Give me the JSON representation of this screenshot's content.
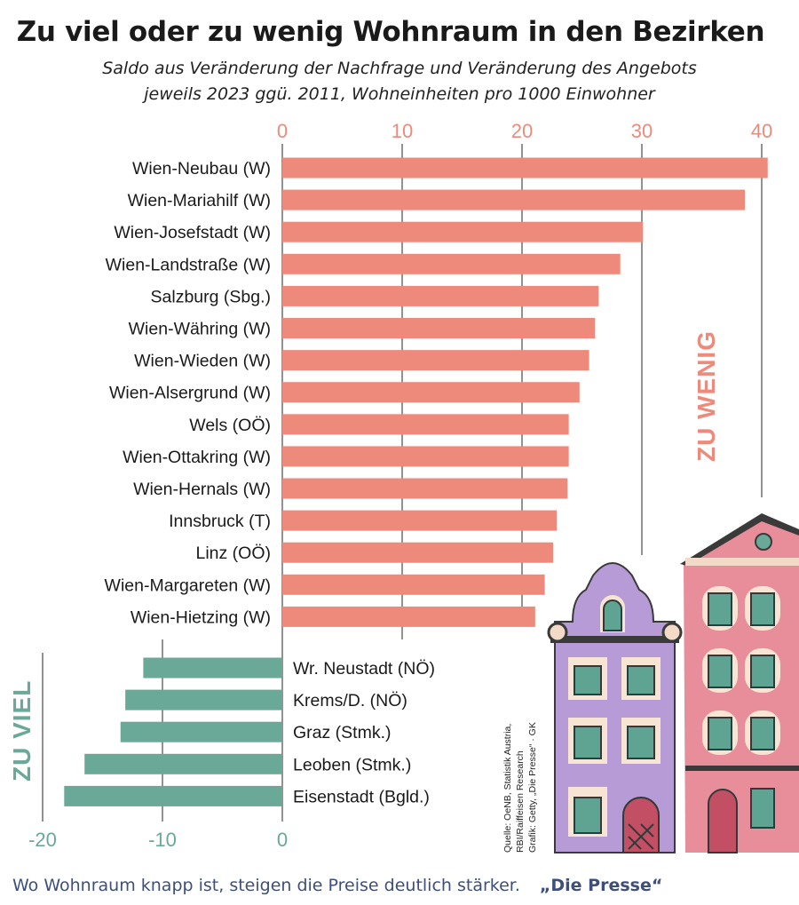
{
  "header": {
    "title": "Zu viel oder zu wenig Wohnraum in den Bezirken",
    "subtitle_line1": "Saldo aus Veränderung der Nachfrage und Veränderung des Angebots",
    "subtitle_line2": "jeweils 2023 ggü. 2011, Wohneinheiten pro 1000 Einwohner"
  },
  "annotations": {
    "too_little": "ZU WENIG",
    "too_much": "ZU VIEL",
    "source_line1": "Quelle: OeNB, Statistik Austria,",
    "source_line2": "RBI/Raiffeisen Research",
    "source_line3": "Grafik: Getty, „Die Presse“ · GK"
  },
  "caption": {
    "text": "Wo Wohnraum knapp ist, steigen die Preise deutlich stärker.",
    "brand": "„Die Presse“"
  },
  "colors": {
    "positive": "#ee8a7b",
    "negative": "#6aa897",
    "axis_top": "#ee8a7b",
    "axis_bottom": "#6aa897"
  },
  "chart_data": {
    "type": "bar",
    "orientation": "horizontal",
    "categories": [
      "Wien-Neubau (W)",
      "Wien-Mariahilf (W)",
      "Wien-Josefstadt (W)",
      "Wien-Landstraße (W)",
      "Salzburg (Sbg.)",
      "Wien-Währing (W)",
      "Wien-Wieden (W)",
      "Wien-Alsergrund (W)",
      "Wels (OÖ)",
      "Wien-Ottakring (W)",
      "Wien-Hernals (W)",
      "Innsbruck (T)",
      "Linz (OÖ)",
      "Wien-Margareten (W)",
      "Wien-Hietzing (W)",
      "Wr. Neustadt (NÖ)",
      "Krems/D. (NÖ)",
      "Graz (Stmk.)",
      "Leoben (Stmk.)",
      "Eisenstadt (Bgld.)"
    ],
    "values": [
      40.5,
      38.6,
      30.1,
      28.2,
      26.4,
      26.1,
      25.6,
      24.8,
      23.9,
      23.9,
      23.8,
      22.9,
      22.6,
      21.9,
      21.1,
      -11.6,
      -13.1,
      -13.5,
      -16.5,
      -18.2
    ],
    "xaxis_top": {
      "range": [
        0,
        40
      ],
      "ticks": [
        "0",
        "10",
        "20",
        "30",
        "40"
      ]
    },
    "xaxis_bottom": {
      "range": [
        -20,
        0
      ],
      "ticks": [
        "-20",
        "-10",
        "0"
      ]
    },
    "gridlines": true
  }
}
